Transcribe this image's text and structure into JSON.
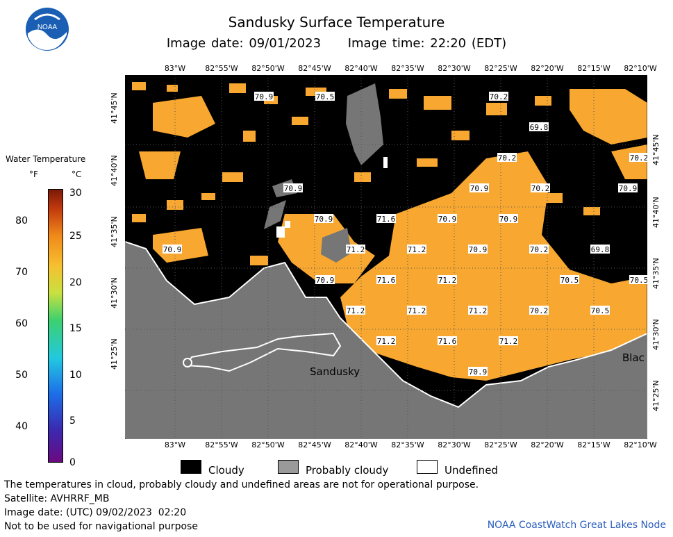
{
  "header": {
    "title": "Sandusky Surface Temperature",
    "subtitle": "Image date: 09/01/2023     Image time: 22:20 (EDT)",
    "logo_text": "NOAA"
  },
  "legend": {
    "title": "Water Temperature",
    "unit_f": "°F",
    "unit_c": "°C",
    "f_ticks": [
      "80",
      "70",
      "60",
      "50",
      "40"
    ],
    "c_ticks": [
      "30",
      "25",
      "20",
      "15",
      "10",
      "5",
      "0"
    ]
  },
  "map": {
    "lon_labels": [
      "83°W",
      "82°55'W",
      "82°50'W",
      "82°45'W",
      "82°40'W",
      "82°35'W",
      "82°30'W",
      "82°25'W",
      "82°20'W",
      "82°15'W",
      "82°10'W"
    ],
    "lat_labels": [
      "41°45'N",
      "41°40'N",
      "41°35'N",
      "41°30'N",
      "41°25'N"
    ],
    "place_sandusky": "Sandusky",
    "place_blac": "Blac",
    "temperature_labels": [
      "70.9",
      "70.5",
      "70.2",
      "69.8",
      "70.2",
      "70.2",
      "70.9",
      "70.9",
      "70.9",
      "70.2",
      "70.9",
      "71.6",
      "70.9",
      "70.9",
      "70.9",
      "71.2",
      "71.2",
      "70.9",
      "70.2",
      "69.8",
      "70.9",
      "71.6",
      "71.2",
      "70.5",
      "70.5",
      "71.2",
      "71.2",
      "71.2",
      "70.2",
      "70.5",
      "71.2",
      "71.6",
      "71.2",
      "70.9"
    ],
    "colors": {
      "water": "#f8a830",
      "cloudy": "#000000",
      "probably_cloudy": "#767676",
      "land": "#767676",
      "undefined": "#ffffff"
    }
  },
  "key": {
    "cloudy": "Cloudy",
    "probably_cloudy": "Probably cloudy",
    "undefined": "Undefined"
  },
  "notes": {
    "line1": "The temperatures in cloud, probably cloudy and undefined areas are not for operational purpose.",
    "line2": "Satellite: AVHRRF_MB",
    "line3": "Image date: (UTC) 09/02/2023  02:20",
    "line4": "Not to be used for navigational purpose",
    "credit": "NOAA CoastWatch Great Lakes Node"
  }
}
